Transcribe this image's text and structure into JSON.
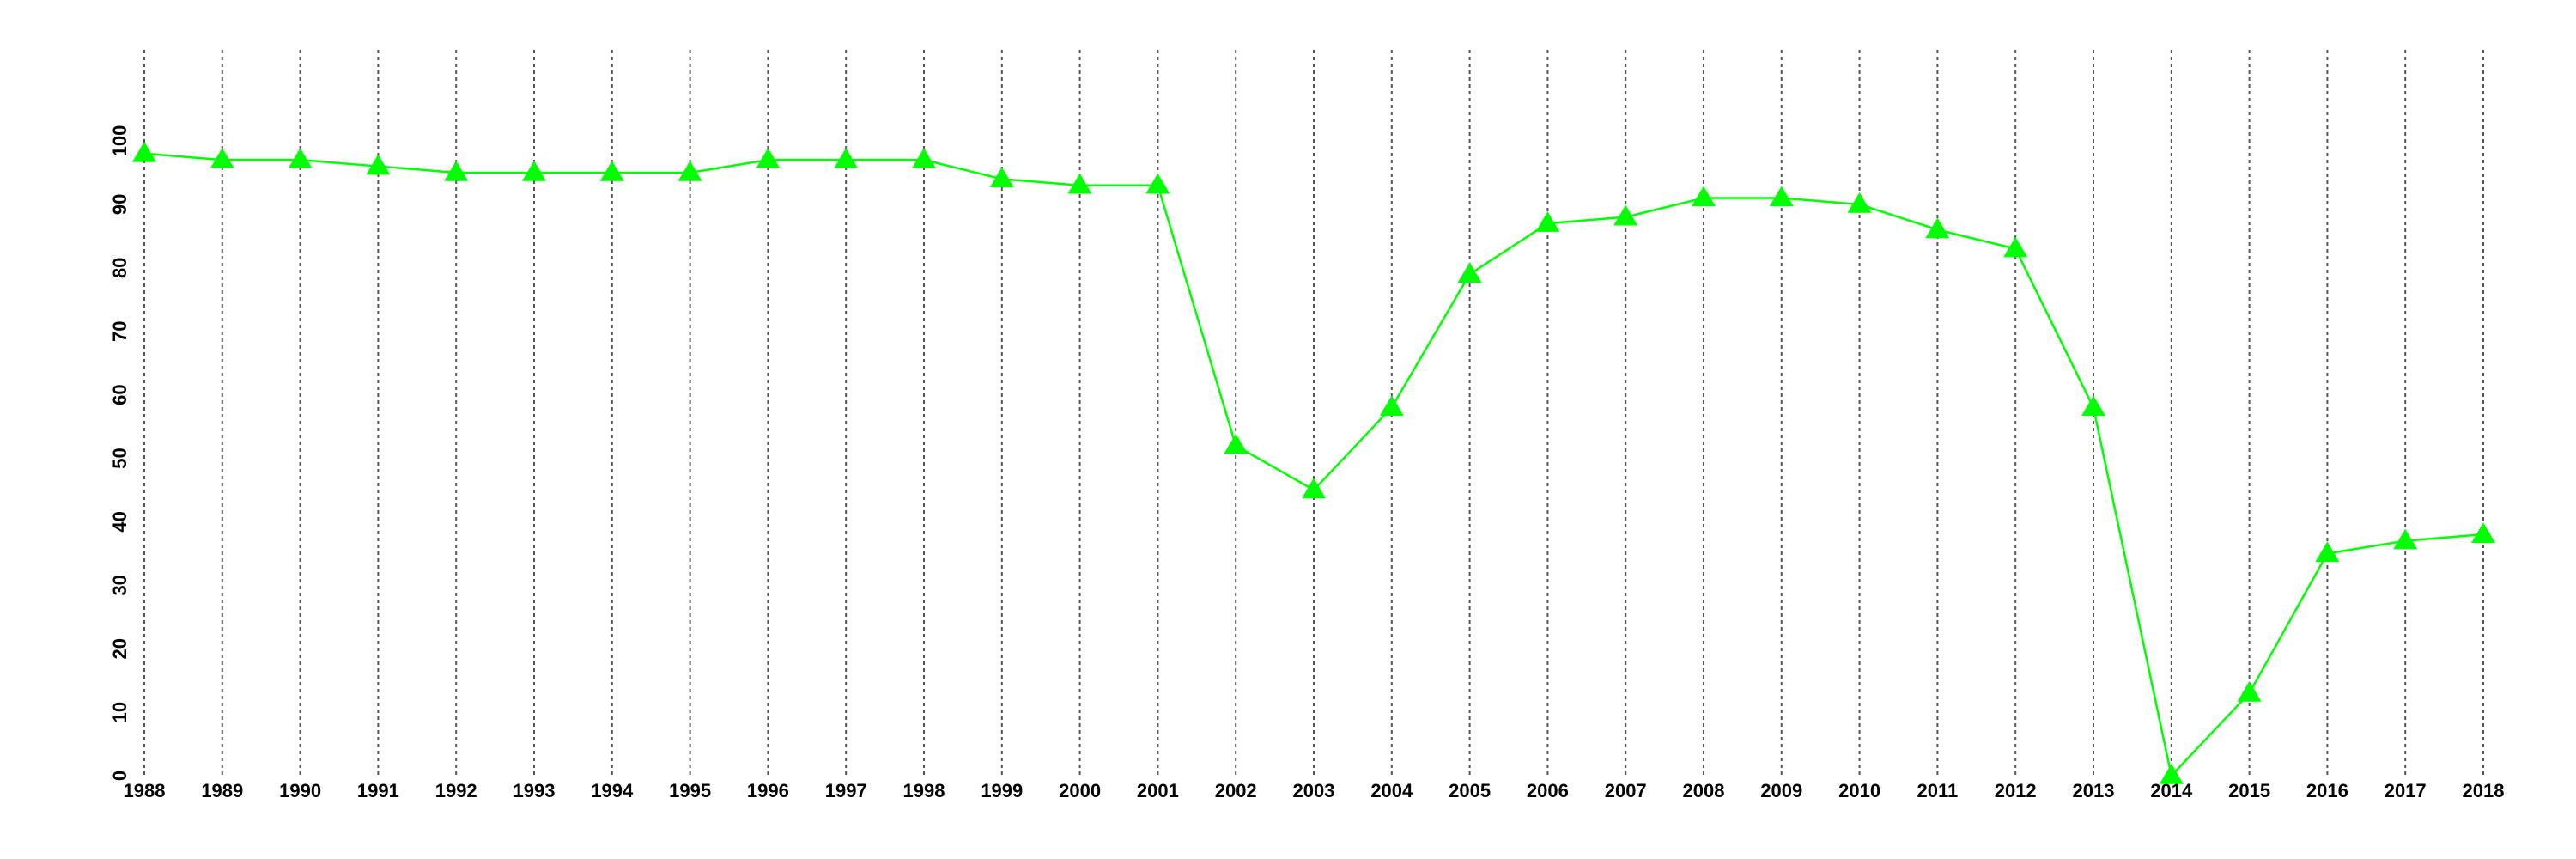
{
  "chart_data": {
    "type": "line",
    "categories": [
      "1988",
      "1989",
      "1990",
      "1991",
      "1992",
      "1993",
      "1994",
      "1995",
      "1996",
      "1997",
      "1998",
      "1999",
      "2000",
      "2001",
      "2002",
      "2003",
      "2004",
      "2005",
      "2006",
      "2007",
      "2008",
      "2009",
      "2010",
      "2011",
      "2012",
      "2013",
      "2014",
      "2015",
      "2016",
      "2017",
      "2018"
    ],
    "series": [
      {
        "color": "#00ff00",
        "values": [
          98,
          97,
          97,
          96,
          95,
          95,
          95,
          95,
          97,
          97,
          97,
          94,
          93,
          93,
          52,
          45,
          58,
          79,
          87,
          88,
          91,
          91,
          90,
          86,
          83,
          58,
          0,
          13,
          35,
          37,
          38
        ]
      }
    ],
    "ylim": [
      0,
      100
    ],
    "yticks": [
      0,
      10,
      20,
      30,
      40,
      50,
      60,
      70,
      80,
      90,
      100
    ],
    "grid": true
  }
}
